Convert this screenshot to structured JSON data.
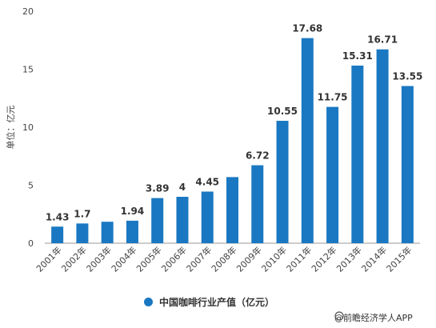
{
  "chart_data": {
    "type": "bar",
    "ylabel": "单位：亿元",
    "ylim": [
      0,
      20
    ],
    "yticks": [
      "0",
      "5",
      "10",
      "15",
      "20"
    ],
    "grid": false,
    "legend_position": "bottom",
    "categories": [
      "2001年",
      "2002年",
      "2003年",
      "2004年",
      "2005年",
      "2006年",
      "2007年",
      "2008年",
      "2009年",
      "2010年",
      "2011年",
      "2012年",
      "2013年",
      "2014年",
      "2015年"
    ],
    "series": [
      {
        "name": "中国咖啡行业产值（亿元）",
        "color": "#1a78c2",
        "values": [
          1.43,
          1.7,
          1.85,
          1.94,
          3.89,
          4,
          4.45,
          5.7,
          6.72,
          10.55,
          17.68,
          11.75,
          15.31,
          16.71,
          13.55
        ],
        "labels": [
          "1.43",
          "1.7",
          "",
          "1.94",
          "3.89",
          "4",
          "4.45",
          "",
          "6.72",
          "10.55",
          "17.68",
          "11.75",
          "15.31",
          "16.71",
          "13.55"
        ]
      }
    ]
  },
  "source": {
    "text": "@前瞻经济学人APP",
    "icon": "circle-icon"
  }
}
